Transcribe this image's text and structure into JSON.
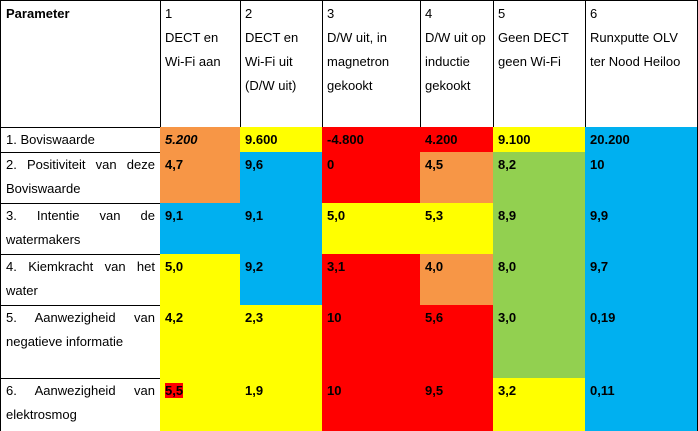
{
  "table": {
    "header": [
      {
        "label": "Parameter"
      },
      {
        "number": "1",
        "label": "DECT en Wi-Fi aan"
      },
      {
        "number": "2",
        "label": "DECT en Wi-Fi uit (D/W uit)"
      },
      {
        "number": "3",
        "label": "D/W uit, in magnetron gekookt"
      },
      {
        "number": "4",
        "label": "D/W uit op inductie gekookt"
      },
      {
        "number": "5",
        "label": "Geen DECT geen Wi-Fi"
      },
      {
        "number": "6",
        "label": "Runxputte OLV ter Nood Heiloo"
      }
    ],
    "rows": [
      {
        "label": "1. Boviswaarde",
        "cells": [
          {
            "text": "5.200",
            "color": "#f79646",
            "italic": true
          },
          {
            "text": "9.600",
            "color": "#ffff00"
          },
          {
            "text": "-4.800",
            "color": "#ff0000"
          },
          {
            "text": "4.200",
            "color": "#ff0000"
          },
          {
            "text": "9.100",
            "color": "#ffff00"
          },
          {
            "text": "20.200",
            "color": "#00b0f0"
          }
        ]
      },
      {
        "label": "2. Positiviteit van deze Boviswaarde",
        "cells": [
          {
            "text": "4,7",
            "color": "#f79646"
          },
          {
            "text": "9,6",
            "color": "#00b0f0"
          },
          {
            "text": "0",
            "color": "#ff0000"
          },
          {
            "text": "4,5",
            "color": "#f79646"
          },
          {
            "text": "8,2",
            "color": "#92d050"
          },
          {
            "text": "10",
            "color": "#00b0f0"
          }
        ]
      },
      {
        "label": "3. Intentie van de watermakers",
        "cells": [
          {
            "text": "9,1",
            "color": "#00b0f0"
          },
          {
            "text": "9,1",
            "color": "#00b0f0"
          },
          {
            "text": "5,0",
            "color": "#ffff00"
          },
          {
            "text": "5,3",
            "color": "#ffff00"
          },
          {
            "text": "8,9",
            "color": "#92d050"
          },
          {
            "text": "9,9",
            "color": "#00b0f0"
          }
        ]
      },
      {
        "label": "4. Kiemkracht van het water",
        "cells": [
          {
            "text": "5,0",
            "color": "#ffff00"
          },
          {
            "text": "9,2",
            "color": "#00b0f0"
          },
          {
            "text": "3,1",
            "color": "#ff0000"
          },
          {
            "text": "4,0",
            "color": "#f79646"
          },
          {
            "text": "8,0",
            "color": "#92d050"
          },
          {
            "text": "9,7",
            "color": "#00b0f0"
          }
        ]
      },
      {
        "label": "5. Aanwezigheid van negatieve informatie",
        "cells": [
          {
            "text": "4,2",
            "color": "#ffff00"
          },
          {
            "text": "2,3",
            "color": "#ffff00"
          },
          {
            "text": "10",
            "color": "#ff0000"
          },
          {
            "text": "5,6",
            "color": "#ff0000"
          },
          {
            "text": "3,0",
            "color": "#92d050"
          },
          {
            "text": "0,19",
            "color": "#00b0f0"
          }
        ]
      },
      {
        "label": "6. Aanwezigheid van elektrosmog",
        "cells": [
          {
            "text": "5,5",
            "color": "#ffff00",
            "highlight": "#ff0000"
          },
          {
            "text": "1,9",
            "color": "#ffff00"
          },
          {
            "text": "10",
            "color": "#ff0000"
          },
          {
            "text": "9,5",
            "color": "#ff0000"
          },
          {
            "text": "3,2",
            "color": "#ffff00"
          },
          {
            "text": "0,11",
            "color": "#00b0f0"
          }
        ]
      }
    ]
  }
}
